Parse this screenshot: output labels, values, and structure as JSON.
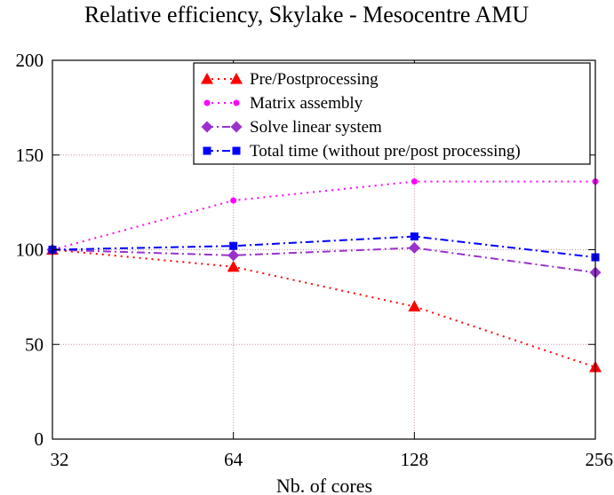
{
  "chart_data": {
    "type": "line",
    "title": "Relative efficiency, Skylake - Mesocentre AMU",
    "xlabel": "Nb. of cores",
    "ylabel": "",
    "x": [
      32,
      64,
      128,
      256
    ],
    "x_scale": "log2",
    "xlim": [
      32,
      256
    ],
    "ylim": [
      0,
      200
    ],
    "yticks": [
      0,
      50,
      100,
      150,
      200
    ],
    "grid": true,
    "legend_position": "top-right",
    "series": [
      {
        "name": "Pre/Postprocessing",
        "values": [
          100,
          91,
          70,
          38
        ],
        "color": "#ff0000",
        "marker": "triangle",
        "dash": "dot"
      },
      {
        "name": "Matrix assembly",
        "values": [
          100,
          126,
          136,
          136
        ],
        "color": "#ff00ff",
        "marker": "circle",
        "dash": "dot"
      },
      {
        "name": "Solve linear system",
        "values": [
          100,
          97,
          101,
          88
        ],
        "color": "#9932cc",
        "marker": "diamond",
        "dash": "dashdot"
      },
      {
        "name": "Total time (without pre/post processing)",
        "values": [
          100,
          102,
          107,
          96
        ],
        "color": "#0000ff",
        "marker": "square",
        "dash": "dashdot"
      }
    ]
  }
}
